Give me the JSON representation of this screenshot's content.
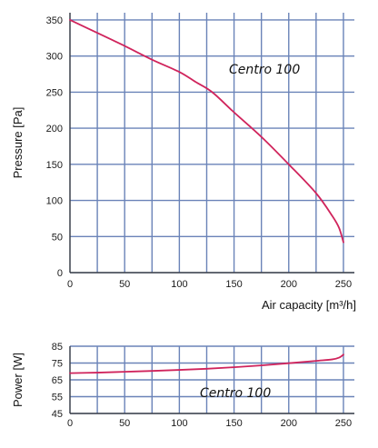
{
  "chart_data": [
    {
      "type": "line",
      "ylabel": "Pressure [Pa]",
      "xlabel": "Air capacity [m³/h]",
      "xlim": [
        0,
        260
      ],
      "ylim": [
        0,
        360
      ],
      "x_ticks": [
        0,
        50,
        100,
        150,
        200,
        250
      ],
      "y_ticks": [
        0,
        50,
        100,
        150,
        200,
        250,
        300,
        350
      ],
      "grid": true,
      "annotation": "Centro 100",
      "line_color": "#d0245c",
      "grid_color": "#6a83b8",
      "series": [
        {
          "x": [
            0,
            25,
            50,
            75,
            100,
            115,
            130,
            150,
            175,
            200,
            225,
            240,
            246,
            250
          ],
          "y": [
            350,
            332,
            314,
            295,
            278,
            264,
            250,
            222,
            188,
            150,
            110,
            78,
            62,
            42
          ]
        }
      ]
    },
    {
      "type": "line",
      "ylabel": "Power [W]",
      "xlabel": "",
      "xlim": [
        0,
        260
      ],
      "ylim": [
        45,
        85
      ],
      "x_ticks": [
        0,
        50,
        100,
        150,
        200,
        250
      ],
      "y_ticks": [
        45,
        55,
        65,
        75,
        85
      ],
      "grid": true,
      "annotation": "Centro 100",
      "line_color": "#d0245c",
      "grid_color": "#6a83b8",
      "series": [
        {
          "x": [
            0,
            25,
            50,
            75,
            100,
            125,
            150,
            175,
            200,
            225,
            240,
            246,
            250
          ],
          "y": [
            69,
            69.3,
            69.8,
            70.3,
            70.9,
            71.6,
            72.5,
            73.6,
            74.9,
            76.3,
            77.2,
            78.2,
            80
          ]
        }
      ]
    }
  ]
}
